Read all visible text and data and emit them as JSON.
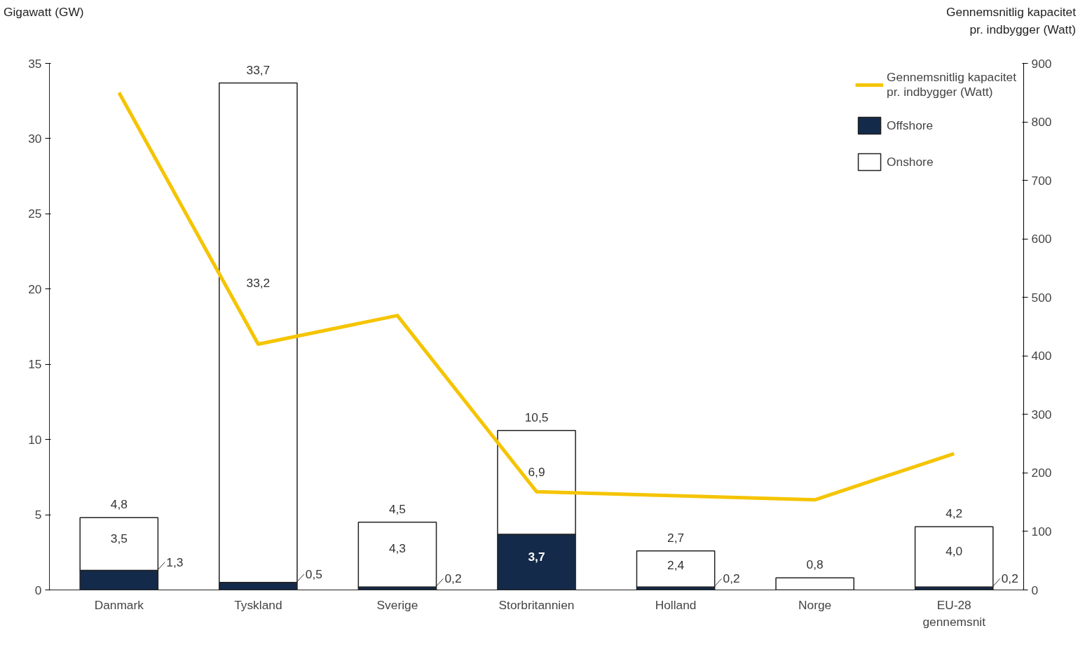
{
  "chart_data": {
    "type": "bar",
    "stacked": true,
    "ylabel": "Gigawatt (GW)",
    "y2label": "Gennemsnitlig kapacitet\npr. indbygger (Watt)",
    "categories": [
      "Danmark",
      "Tyskland",
      "Sverige",
      "Storbritannien",
      "Holland",
      "Norge",
      "EU-28\ngennemsnit"
    ],
    "series": [
      {
        "name": "Offshore",
        "color": "#132a4a",
        "values": [
          1.3,
          0.5,
          0.2,
          3.7,
          0.2,
          null,
          0.2
        ],
        "value_labels": [
          "1,3",
          "0,5",
          "0,2",
          "3,7",
          "0,2",
          null,
          "0,2"
        ]
      },
      {
        "name": "Onshore",
        "color": "#ffffff",
        "values": [
          3.5,
          33.2,
          4.3,
          6.9,
          2.4,
          0.8,
          4.0
        ],
        "value_labels": [
          "3,5",
          "33,2",
          "4,3",
          "6,9",
          "2,4",
          null,
          "4,0"
        ]
      },
      {
        "name": "Gennemsnitlig kapacitet\npr. indbygger (Watt)",
        "type": "line",
        "axis": "y2",
        "color": "#f5c400",
        "values": [
          850,
          420,
          469,
          168,
          161,
          154,
          233
        ]
      }
    ],
    "totals": [
      "4,8",
      "33,7",
      "4,5",
      "10,5",
      "2,7",
      "0,8",
      "4,2"
    ],
    "ylim": [
      0,
      35
    ],
    "yticks": [
      0,
      5,
      10,
      15,
      20,
      25,
      30,
      35
    ],
    "y2lim": [
      0,
      900
    ],
    "y2ticks": [
      0,
      100,
      200,
      300,
      400,
      500,
      600,
      700,
      800,
      900
    ],
    "grid": false,
    "legend": "top right",
    "marker": "none",
    "line_style": "solid"
  }
}
